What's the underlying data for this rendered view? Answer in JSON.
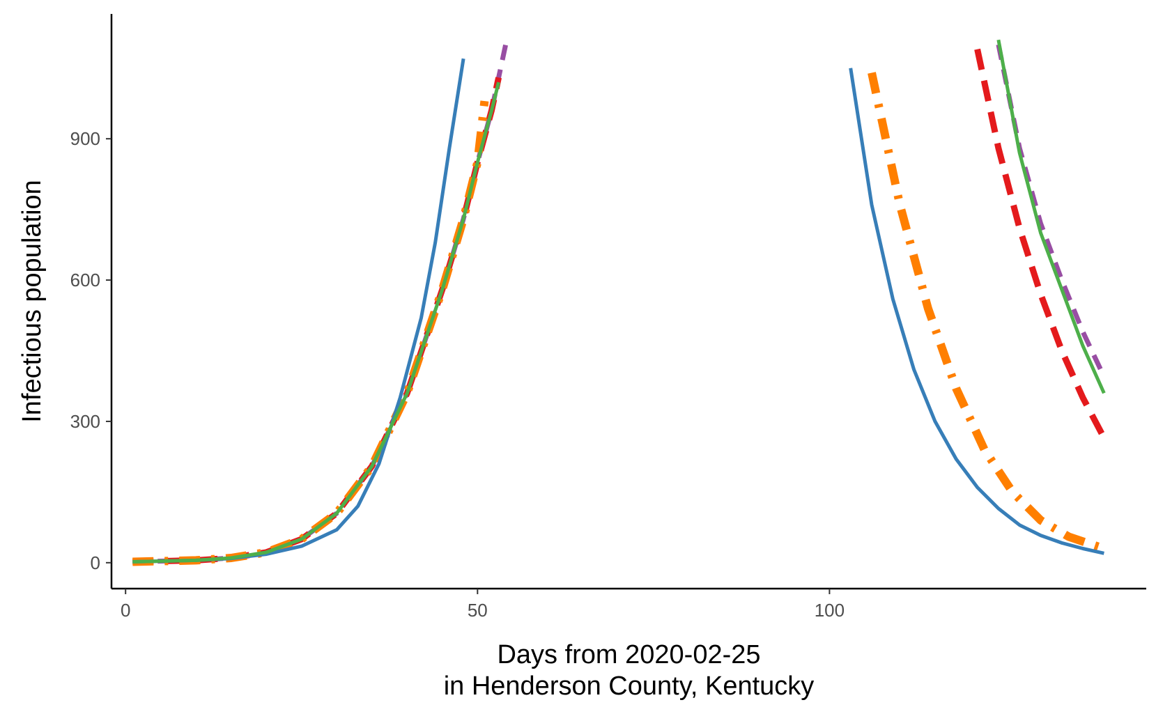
{
  "chart_data": {
    "type": "line",
    "xlabel": "Days from 2020-02-25",
    "xlabel_line2": "in Henderson County, Kentucky",
    "ylabel": "Infectious population",
    "xlim": [
      -2,
      145
    ],
    "ylim": [
      -55,
      1165
    ],
    "x_ticks": [
      0,
      50,
      100
    ],
    "y_ticks": [
      0,
      300,
      600,
      900
    ],
    "grid": false,
    "legend": "none",
    "series": [
      {
        "color": "#984ea3",
        "dash": "22,14",
        "width": 7,
        "segments": [
          {
            "x": [
              1,
              10,
              15,
              20,
              25,
              30,
              35,
              40,
              45,
              48,
              50,
              52,
              54
            ],
            "y": [
              2,
              5,
              10,
              22,
              50,
              105,
              205,
              360,
              580,
              730,
              850,
              960,
              1100
            ]
          },
          {
            "x": [
              124,
              127,
              130,
              133,
              136,
              139
            ],
            "y": [
              1100,
              880,
              720,
              600,
              490,
              395
            ]
          }
        ]
      },
      {
        "color": "#e41a1c",
        "dash": "30,16",
        "width": 9,
        "segments": [
          {
            "x": [
              1,
              10,
              15,
              20,
              25,
              30,
              35,
              40,
              45,
              48,
              50,
              52,
              53
            ],
            "y": [
              2,
              5,
              10,
              22,
              50,
              105,
              205,
              360,
              580,
              730,
              850,
              960,
              1030
            ]
          },
          {
            "x": [
              121,
              124,
              127,
              130,
              133,
              136,
              139
            ],
            "y": [
              1090,
              880,
              710,
              570,
              450,
              350,
              265
            ]
          }
        ]
      },
      {
        "color": "#ff7f00",
        "dash": "30,16,5,16",
        "width": 12,
        "segments": [
          {
            "x": [
              1,
              10,
              15,
              20,
              25,
              30,
              35,
              40,
              45,
              48,
              50,
              51
            ],
            "y": [
              2,
              5,
              10,
              22,
              50,
              105,
              205,
              360,
              580,
              730,
              850,
              980
            ]
          },
          {
            "x": [
              106,
              110,
              114,
              118,
              122,
              126,
              130,
              134,
              139
            ],
            "y": [
              1040,
              760,
              540,
              370,
              240,
              150,
              90,
              55,
              30
            ]
          }
        ]
      },
      {
        "color": "#377eb8",
        "dash": "",
        "width": 5,
        "segments": [
          {
            "x": [
              1,
              10,
              15,
              20,
              25,
              30,
              33,
              36,
              39,
              42,
              44,
              46,
              48
            ],
            "y": [
              2,
              5,
              9,
              18,
              35,
              70,
              120,
              210,
              350,
              520,
              680,
              880,
              1070
            ]
          },
          {
            "x": [
              103,
              106,
              109,
              112,
              115,
              118,
              121,
              124,
              127,
              130,
              133,
              136,
              139
            ],
            "y": [
              1050,
              760,
              560,
              410,
              300,
              220,
              160,
              115,
              80,
              58,
              42,
              30,
              20
            ]
          }
        ]
      },
      {
        "color": "#4daf4a",
        "dash": "",
        "width": 5,
        "segments": [
          {
            "x": [
              1,
              10,
              15,
              20,
              25,
              30,
              35,
              40,
              45,
              48,
              50,
              52,
              53
            ],
            "y": [
              2,
              5,
              10,
              22,
              50,
              105,
              205,
              360,
              580,
              730,
              850,
              960,
              1020
            ]
          },
          {
            "x": [
              124,
              127,
              130,
              133,
              136,
              139
            ],
            "y": [
              1110,
              870,
              700,
              580,
              460,
              360
            ]
          }
        ]
      }
    ]
  }
}
